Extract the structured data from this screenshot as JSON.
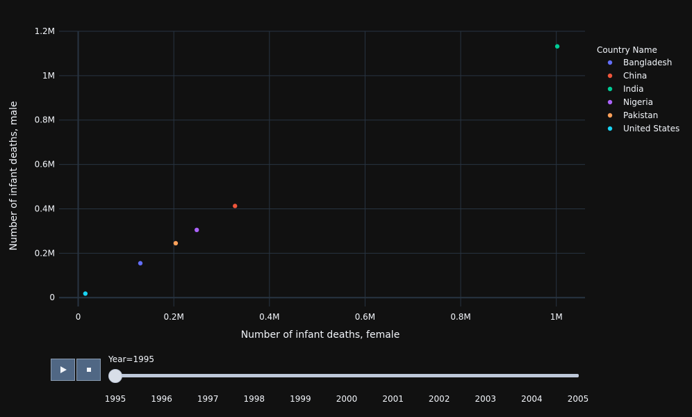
{
  "chart_data": {
    "type": "scatter",
    "xlabel": "Number of infant deaths, female",
    "ylabel": "Number of infant deaths, male",
    "xlim": [
      -40000,
      1060000
    ],
    "ylim": [
      -40000,
      1200000
    ],
    "x_ticks": [
      0,
      200000,
      400000,
      600000,
      800000,
      1000000
    ],
    "x_tick_labels": [
      "0",
      "0.2M",
      "0.4M",
      "0.6M",
      "0.8M",
      "1M"
    ],
    "y_ticks": [
      0,
      200000,
      400000,
      600000,
      800000,
      1000000,
      1200000
    ],
    "y_tick_labels": [
      "0",
      "0.2M",
      "0.4M",
      "0.6M",
      "0.8M",
      "1M",
      "1.2M"
    ],
    "grid": true,
    "legend": {
      "title": "Country Name",
      "position": "right"
    },
    "series": [
      {
        "name": "Bangladesh",
        "color": "#636efa",
        "x": [
          130000
        ],
        "y": [
          155000
        ]
      },
      {
        "name": "China",
        "color": "#ef553b",
        "x": [
          328000
        ],
        "y": [
          413000
        ]
      },
      {
        "name": "India",
        "color": "#00cc96",
        "x": [
          1002000
        ],
        "y": [
          1132000
        ]
      },
      {
        "name": "Nigeria",
        "color": "#ab63fa",
        "x": [
          248000
        ],
        "y": [
          305000
        ]
      },
      {
        "name": "Pakistan",
        "color": "#ffa15a",
        "x": [
          204000
        ],
        "y": [
          245000
        ]
      },
      {
        "name": "United States",
        "color": "#19d3f3",
        "x": [
          15000
        ],
        "y": [
          18000
        ]
      }
    ]
  },
  "slider": {
    "label": "Year=1995",
    "current": "1995",
    "steps": [
      "1995",
      "1996",
      "1997",
      "1998",
      "1999",
      "2000",
      "2001",
      "2002",
      "2003",
      "2004",
      "2005"
    ]
  },
  "controls": {
    "play_icon": "play-icon",
    "stop_icon": "stop-icon"
  }
}
